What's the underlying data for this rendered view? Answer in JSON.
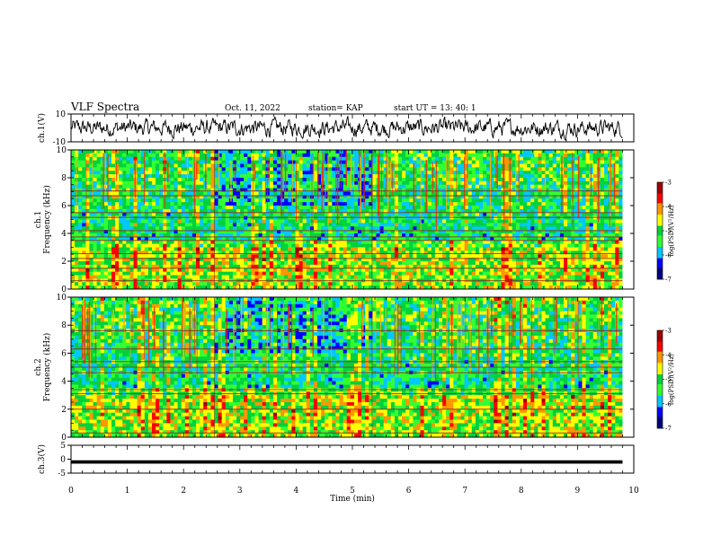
{
  "header": {
    "title": "VLF Spectra",
    "date": "Oct. 11, 2022",
    "station": "station= KAP",
    "start": "start  UT =   13: 40: 1"
  },
  "chart_data": [
    {
      "type": "line",
      "panel": "ch1-waveform",
      "ylabel": "ch.1(V)",
      "ylim": [
        -10,
        10
      ],
      "yticks": [
        "10",
        "-10"
      ],
      "x_range_min": [
        0,
        9.8
      ],
      "series": [
        {
          "values_note": "dense noise-like waveform, mean ~0, amplitude ~ +/-5 V"
        }
      ]
    },
    {
      "type": "heatmap",
      "panel": "ch1-spectrogram",
      "ylabel": "ch.1\nFrequency (kHz)",
      "ylim": [
        0,
        10
      ],
      "yticks": [
        "0",
        "2",
        "4",
        "6",
        "8",
        "10"
      ],
      "colorbar": {
        "label": "log(PSD)(V²/Hz)",
        "range": [
          -7,
          -3
        ],
        "ticks": [
          "-3",
          "-4",
          "-5",
          "-6",
          "-7"
        ]
      },
      "segment_boundaries_min": [
        2.55,
        5.35
      ],
      "horizontal_lines_khz": [
        0.6,
        1.5,
        2.2,
        2.55,
        3.5,
        3.75,
        4.2,
        5.15,
        5.5,
        6.7,
        7.05
      ]
    },
    {
      "type": "heatmap",
      "panel": "ch2-spectrogram",
      "ylabel": "ch.2\nFrequency (kHz)",
      "ylim": [
        0,
        10
      ],
      "yticks": [
        "0",
        "2",
        "4",
        "6",
        "8",
        "10"
      ],
      "colorbar": {
        "label": "log(PSD)(V²/Hz)",
        "range": [
          -7,
          -3
        ],
        "ticks": [
          "-3",
          "-4",
          "-5",
          "-6",
          "-7"
        ]
      },
      "segment_boundaries_min": [
        2.55,
        5.35
      ],
      "horizontal_lines_khz": [
        0.3,
        2.0,
        3.1,
        3.4,
        4.6,
        5.0,
        5.4,
        6.3,
        7.6
      ]
    },
    {
      "type": "line",
      "panel": "ch3-waveform",
      "ylabel": "ch.3(V)",
      "ylim": [
        -5,
        5
      ],
      "yticks": [
        "5",
        "0",
        "-5"
      ],
      "series": [
        {
          "values_note": "saturated dense band near ~ -1 V",
          "level": -1
        }
      ]
    }
  ],
  "xaxis": {
    "label": "Time (min)",
    "range": [
      0,
      10
    ],
    "ticks": [
      "0",
      "1",
      "2",
      "3",
      "4",
      "5",
      "6",
      "7",
      "8",
      "9",
      "10"
    ],
    "data_end": 9.8
  },
  "colors": {
    "palette": [
      "#00007f",
      "#0000ff",
      "#00c8ff",
      "#32ff32",
      "#00d23c",
      "#ffff00",
      "#ff9600",
      "#ff0000",
      "#9e0000"
    ]
  }
}
